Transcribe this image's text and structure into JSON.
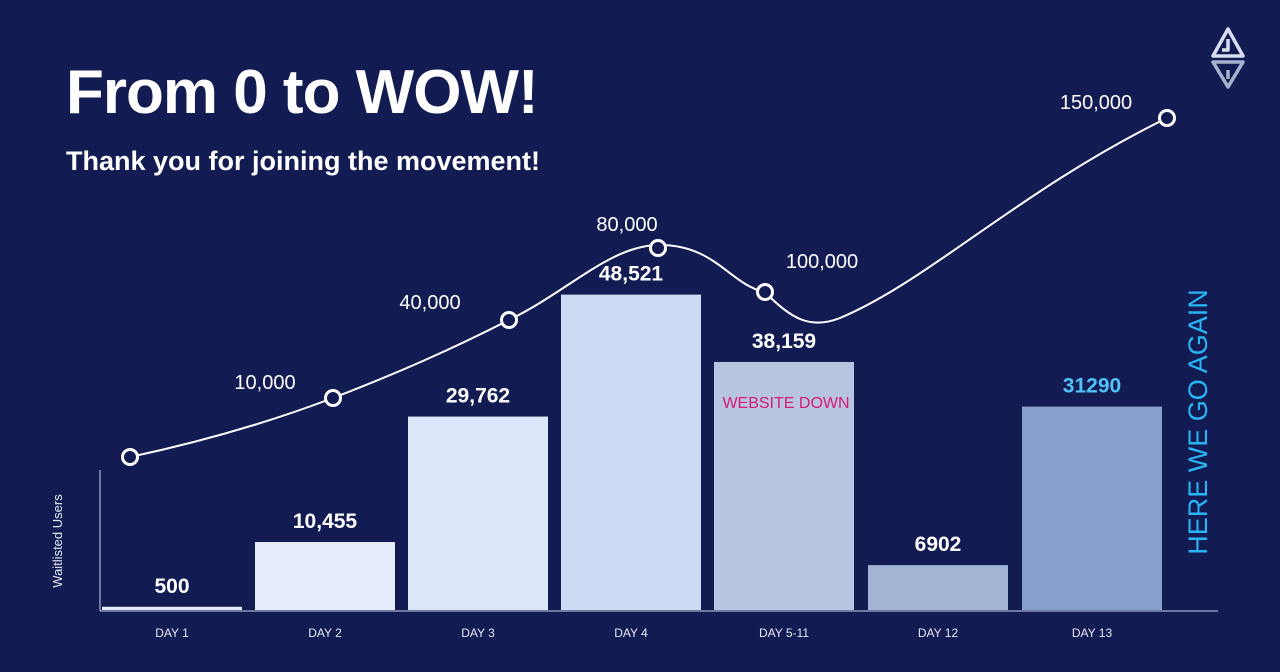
{
  "header": {
    "title": "From 0 to WOW!",
    "subtitle": "Thank you for joining the movement!"
  },
  "logo": {
    "icon": "brand-logo-icon"
  },
  "colors": {
    "background": "#121c52",
    "line": "#ffffff",
    "annotation_down": "#d81b72",
    "annotation_again": "#29b6f6",
    "label_highlight": "#4fc3f7"
  },
  "chart_data": {
    "type": "bar",
    "ylabel": "Waitlisted Users",
    "xlabel": "",
    "categories": [
      "DAY 1",
      "DAY 2",
      "DAY 3",
      "DAY 4",
      "DAY 5-11",
      "DAY 12",
      "DAY 13"
    ],
    "series": [
      {
        "values": [
          500,
          10455,
          29762,
          48521,
          38159,
          6902,
          31290
        ],
        "value_labels": [
          "500",
          "10,455",
          "29,762",
          "48,521",
          "38,159",
          "6902",
          "31290"
        ],
        "colors": [
          "#e4ebf9",
          "#e6edfa",
          "#dbe6f8",
          "#cddcf4",
          "#b7c5e1",
          "#a3b3d4",
          "#879fcb"
        ]
      }
    ],
    "line_series": {
      "values": [
        0,
        10000,
        40000,
        80000,
        100000,
        150000
      ],
      "labels": [
        "",
        "10,000",
        "40,000",
        "80,000",
        "100,000",
        "150,000"
      ]
    },
    "annotations": [
      "WEBSITE DOWN",
      "HERE WE GO AGAIN"
    ],
    "ylim": [
      0,
      50000
    ],
    "grid": false,
    "legend": "none"
  }
}
